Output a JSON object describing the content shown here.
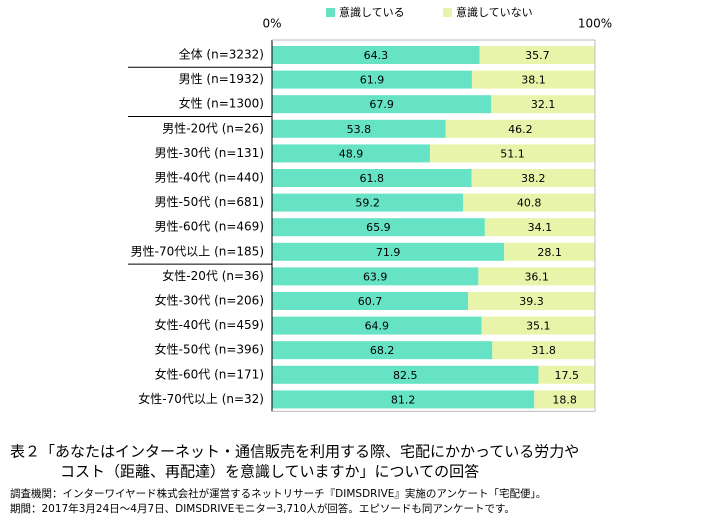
{
  "chart_data": {
    "type": "stacked-bar-horizontal",
    "categories": [
      "全体 (n=3232)",
      "男性 (n=1932)",
      "女性 (n=1300)",
      "男性-20代 (n=26)",
      "男性-30代 (n=131)",
      "男性-40代 (n=440)",
      "男性-50代 (n=681)",
      "男性-60代 (n=469)",
      "男性-70代以上 (n=185)",
      "女性-20代 (n=36)",
      "女性-30代 (n=206)",
      "女性-40代 (n=459)",
      "女性-50代 (n=396)",
      "女性-60代 (n=171)",
      "女性-70代以上 (n=32)"
    ],
    "series": [
      {
        "name": "意識している",
        "color": "#66e3c4",
        "values": [
          64.3,
          61.9,
          67.9,
          53.8,
          48.9,
          61.8,
          59.2,
          65.9,
          71.9,
          63.9,
          60.7,
          64.9,
          68.2,
          82.5,
          81.2
        ]
      },
      {
        "name": "意識していない",
        "color": "#e9f4ab",
        "values": [
          35.7,
          38.1,
          32.1,
          46.2,
          51.1,
          38.2,
          40.8,
          34.1,
          28.1,
          36.1,
          39.3,
          35.1,
          31.8,
          17.5,
          18.8
        ]
      }
    ],
    "xlim": [
      0,
      100
    ],
    "xticks": [
      {
        "value": 0,
        "label": "0%"
      },
      {
        "value": 100,
        "label": "100%"
      }
    ],
    "legend": "top",
    "caption": [
      "表２「あなたはインターネット・通信販売を利用する際、宅配にかかっている労力や",
      "コスト（距離、再配達）を意識していますか」についての回答"
    ],
    "notes": [
      "調査機関：インターワイヤード株式会社が運営するネットリサーチ『DIMSDRIVE』実施のアンケート「宅配便」。",
      "期間：2017年3月24日～4月7日、DIMSDRIVEモニター3,710人が回答。エピソードも同アンケートです。"
    ]
  }
}
